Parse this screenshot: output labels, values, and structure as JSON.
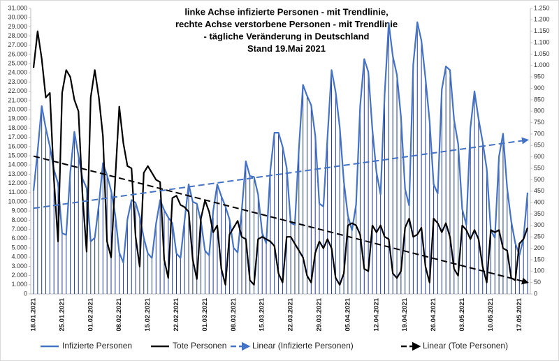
{
  "chart_data": {
    "type": "line",
    "title": [
      "linke Achse infizierte Personen          - mit Trendlinie,",
      "rechte Achse verstorbene Personen - mit Trendlinie",
      "- tägliche Veränderung in Deutschland",
      "Stand 19.Mai 2021"
    ],
    "categories": [
      "18.01.2021",
      null,
      null,
      null,
      null,
      null,
      null,
      "25.01.2021",
      null,
      null,
      null,
      null,
      null,
      null,
      "01.02.2021",
      null,
      null,
      null,
      null,
      null,
      null,
      "08.02.2021",
      null,
      null,
      null,
      null,
      null,
      null,
      "15.02.2021",
      null,
      null,
      null,
      null,
      null,
      null,
      "22.02.2021",
      null,
      null,
      null,
      null,
      null,
      null,
      "01.03.2021",
      null,
      null,
      null,
      null,
      null,
      null,
      "08.03.2021",
      null,
      null,
      null,
      null,
      null,
      null,
      "15.03.2021",
      null,
      null,
      null,
      null,
      null,
      null,
      "22.03.2021",
      null,
      null,
      null,
      null,
      null,
      null,
      "29.03.2021",
      null,
      null,
      null,
      null,
      null,
      null,
      "05.04.2021",
      null,
      null,
      null,
      null,
      null,
      null,
      "12.04.2021",
      null,
      null,
      null,
      null,
      null,
      null,
      "19.04.2021",
      null,
      null,
      null,
      null,
      null,
      null,
      "26.04.2021",
      null,
      null,
      null,
      null,
      null,
      null,
      "03.05.2021",
      null,
      null,
      null,
      null,
      null,
      null,
      "10.05.2021",
      null,
      null,
      null,
      null,
      null,
      null,
      "17.05.2021",
      null,
      null
    ],
    "series": [
      {
        "name": "Infizierte Personen",
        "color": "#4472c4",
        "drop_color": "#1f3a93",
        "axis": "y",
        "trendline": {
          "name": "Linear (Infizierte Personen)",
          "kind": "linear",
          "color": "#4472c4"
        },
        "values": [
          11200,
          15500,
          20400,
          18000,
          16000,
          13500,
          12000,
          6600,
          6400,
          13200,
          17600,
          15000,
          12500,
          11500,
          5700,
          6100,
          9700,
          14200,
          12900,
          11200,
          8600,
          4500,
          3400,
          8100,
          10200,
          9900,
          8400,
          6100,
          4400,
          3900,
          7600,
          10200,
          9100,
          8300,
          7700,
          4400,
          3900,
          8000,
          11900,
          10000,
          9800,
          7900,
          4700,
          4200,
          9000,
          11900,
          10600,
          9500,
          8100,
          5000,
          4500,
          9100,
          14400,
          12800,
          12700,
          10800,
          6600,
          5500,
          13400,
          17500,
          17500,
          16000,
          13700,
          7700,
          7500,
          15800,
          22700,
          21500,
          20500,
          17200,
          9800,
          9500,
          17000,
          24300,
          21900,
          18100,
          12200,
          8500,
          6900,
          9700,
          20400,
          25500,
          24100,
          17800,
          13200,
          10800,
          21700,
          29400,
          25800,
          23800,
          19200,
          11400,
          9600,
          24900,
          29500,
          27500,
          23400,
          18800,
          11900,
          10900,
          22200,
          24700,
          24300,
          18900,
          16300,
          9200,
          7500,
          18000,
          22000,
          19000,
          16500,
          13600,
          6900,
          6100,
          14900,
          17400,
          11500,
          7900,
          5500,
          4200,
          6000,
          11000
        ]
      },
      {
        "name": "Tote Personen",
        "color": "#000000",
        "axis": "y2",
        "trendline": {
          "name": "Linear (Tote Personen)",
          "kind": "linear",
          "color": "#000000"
        },
        "values": [
          990,
          1150,
          1030,
          860,
          880,
          500,
          230,
          880,
          980,
          950,
          850,
          800,
          430,
          185,
          860,
          980,
          860,
          690,
          230,
          160,
          500,
          820,
          660,
          560,
          550,
          250,
          120,
          530,
          560,
          530,
          500,
          490,
          150,
          70,
          420,
          430,
          390,
          380,
          360,
          150,
          65,
          330,
          410,
          360,
          270,
          300,
          110,
          40,
          260,
          290,
          320,
          250,
          240,
          60,
          40,
          240,
          250,
          240,
          230,
          210,
          90,
          50,
          250,
          250,
          220,
          190,
          160,
          80,
          50,
          180,
          230,
          200,
          240,
          200,
          70,
          40,
          90,
          300,
          310,
          300,
          260,
          110,
          100,
          300,
          270,
          300,
          250,
          240,
          90,
          70,
          100,
          290,
          330,
          250,
          260,
          290,
          120,
          50,
          330,
          310,
          270,
          310,
          250,
          110,
          80,
          300,
          280,
          240,
          280,
          240,
          120,
          50,
          280,
          270,
          280,
          200,
          190,
          70,
          60,
          220,
          240,
          290
        ]
      }
    ],
    "ylim": [
      0,
      31000
    ],
    "yticks": [
      0,
      {
        "value": 1000,
        "label": "1.000"
      },
      {
        "value": 2000,
        "label": "2.000"
      },
      {
        "value": 3000,
        "label": "3.000"
      },
      {
        "value": 4000,
        "label": "4.000"
      },
      {
        "value": 5000,
        "label": "5.000"
      },
      {
        "value": 6000,
        "label": "6.000"
      },
      {
        "value": 7000,
        "label": "7.000"
      },
      {
        "value": 8000,
        "label": "8.000"
      },
      {
        "value": 9000,
        "label": "9.000"
      },
      {
        "value": 10000,
        "label": "10.000"
      },
      {
        "value": 11000,
        "label": "11.000"
      },
      {
        "value": 12000,
        "label": "12.000"
      },
      {
        "value": 13000,
        "label": "13.000"
      },
      {
        "value": 14000,
        "label": "14.000"
      },
      {
        "value": 15000,
        "label": "15.000"
      },
      {
        "value": 16000,
        "label": "16.000"
      },
      {
        "value": 17000,
        "label": "17.000"
      },
      {
        "value": 18000,
        "label": "18.000"
      },
      {
        "value": 19000,
        "label": "19.000"
      },
      {
        "value": 20000,
        "label": "20.000"
      },
      {
        "value": 21000,
        "label": "21.000"
      },
      {
        "value": 22000,
        "label": "22.000"
      },
      {
        "value": 23000,
        "label": "23.000"
      },
      {
        "value": 24000,
        "label": "24.000"
      },
      {
        "value": 25000,
        "label": "25.000"
      },
      {
        "value": 26000,
        "label": "26.000"
      },
      {
        "value": 27000,
        "label": "27.000"
      },
      {
        "value": 28000,
        "label": "28.000"
      },
      {
        "value": 29000,
        "label": "29.000"
      },
      {
        "value": 30000,
        "label": "30.000"
      },
      {
        "value": 31000,
        "label": "31.000"
      }
    ],
    "y2lim": [
      0,
      1250
    ],
    "y2ticks": [
      0,
      50,
      100,
      150,
      200,
      250,
      300,
      350,
      400,
      450,
      500,
      550,
      600,
      650,
      700,
      750,
      800,
      850,
      900,
      950,
      {
        "value": 1000,
        "label": "1.000"
      },
      {
        "value": 1050,
        "label": "1.050"
      },
      {
        "value": 1100,
        "label": "1.100"
      },
      {
        "value": 1150,
        "label": "1.150"
      },
      {
        "value": 1200,
        "label": "1.200"
      },
      {
        "value": 1250,
        "label": "1.250"
      }
    ],
    "grid": false,
    "legend": "bottom"
  }
}
